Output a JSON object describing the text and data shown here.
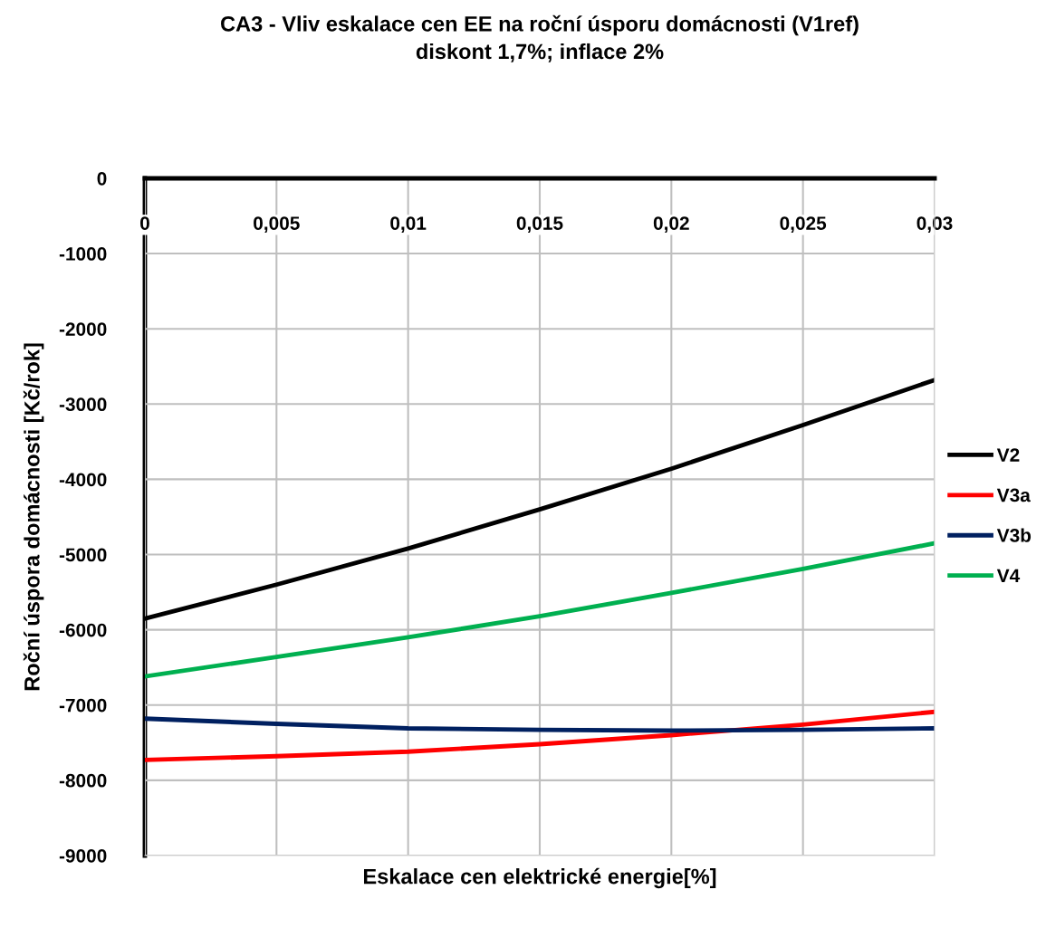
{
  "chart_data": {
    "type": "line",
    "title": "CA3 - Vliv eskalace cen EE na roční úsporu domácnosti (V1ref)\ndiskont 1,7%; inflace 2%",
    "xlabel": "Eskalace cen elektrické energie[%]",
    "ylabel": "Roční úspora domácnosti [Kč/rok]",
    "x": [
      0,
      0.005,
      0.01,
      0.015,
      0.02,
      0.025,
      0.03
    ],
    "series": [
      {
        "name": "V2",
        "color": "#000000",
        "values": [
          -5850,
          -5400,
          -4920,
          -4400,
          -3860,
          -3280,
          -2680
        ]
      },
      {
        "name": "V3a",
        "color": "#ff0000",
        "values": [
          -7730,
          -7680,
          -7620,
          -7520,
          -7400,
          -7260,
          -7090
        ]
      },
      {
        "name": "V3b",
        "color": "#002060",
        "values": [
          -7180,
          -7250,
          -7310,
          -7330,
          -7340,
          -7330,
          -7310
        ]
      },
      {
        "name": "V4",
        "color": "#00b050",
        "values": [
          -6620,
          -6360,
          -6100,
          -5820,
          -5510,
          -5190,
          -4850
        ]
      }
    ],
    "xlim": [
      0,
      0.03
    ],
    "xticks": [
      0,
      {
        "value": 0.005,
        "label": "0,005"
      },
      {
        "value": 0.01,
        "label": "0,01"
      },
      {
        "value": 0.015,
        "label": "0,015"
      },
      {
        "value": 0.02,
        "label": "0,02"
      },
      {
        "value": 0.025,
        "label": "0,025"
      },
      {
        "value": 0.03,
        "label": "0,03"
      }
    ],
    "ylim": [
      -9000,
      0
    ],
    "yticks": [
      0,
      -1000,
      -2000,
      -3000,
      -4000,
      -5000,
      -6000,
      -7000,
      -8000,
      -9000
    ],
    "grid": true,
    "legend": "right",
    "marker": "none",
    "line_style": "solid"
  }
}
